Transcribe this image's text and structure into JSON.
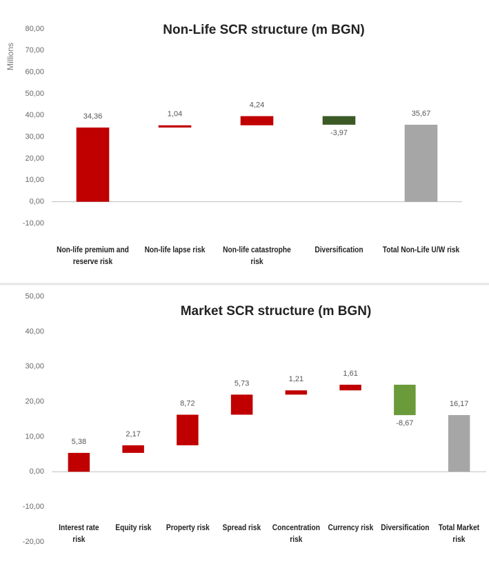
{
  "chart_data": [
    {
      "type": "waterfall",
      "title": "Non-Life SCR structure (m BGN)",
      "y_label": "Millions",
      "categories": [
        "Non-life premium and reserve risk",
        "Non-life lapse risk",
        "Non-life catastrophe risk",
        "Diversification",
        "Total Non-Life U/W risk"
      ],
      "values": [
        34.36,
        1.04,
        4.24,
        -3.97,
        35.67
      ],
      "value_labels": [
        "34,36",
        "1,04",
        "4,24",
        "-3,97",
        "35,67"
      ],
      "increase_color": "#c00000",
      "decrease_color": "#3b5a26",
      "total_color": "#a6a6a6",
      "ylim": [
        -10,
        80
      ],
      "yticks": [
        {
          "value": -10,
          "label": "-10,00"
        },
        {
          "value": 0,
          "label": "0,00"
        },
        {
          "value": 10,
          "label": "10,00"
        },
        {
          "value": 20,
          "label": "20,00"
        },
        {
          "value": 30,
          "label": "30,00"
        },
        {
          "value": 40,
          "label": "40,00"
        },
        {
          "value": 50,
          "label": "50,00"
        },
        {
          "value": 60,
          "label": "60,00"
        },
        {
          "value": 70,
          "label": "70,00"
        },
        {
          "value": 80,
          "label": "80,00"
        }
      ]
    },
    {
      "type": "waterfall",
      "title": "Market SCR structure (m BGN)",
      "categories": [
        "Interest rate risk",
        "Equity risk",
        "Property risk",
        "Spread risk",
        "Concentration risk",
        "Currency risk",
        "Diversification",
        "Total Market risk"
      ],
      "values": [
        5.38,
        2.17,
        8.72,
        5.73,
        1.21,
        1.61,
        -8.67,
        16.17
      ],
      "value_labels": [
        "5,38",
        "2,17",
        "8,72",
        "5,73",
        "1,21",
        "1,61",
        "-8,67",
        "16,17"
      ],
      "increase_color": "#c00000",
      "decrease_color": "#6a9a3a",
      "total_color": "#a6a6a6",
      "ylim": [
        -20,
        50
      ],
      "yticks": [
        {
          "value": -20,
          "label": "-20,00"
        },
        {
          "value": -10,
          "label": "-10,00"
        },
        {
          "value": 0,
          "label": "0,00"
        },
        {
          "value": 10,
          "label": "10,00"
        },
        {
          "value": 20,
          "label": "20,00"
        },
        {
          "value": 30,
          "label": "30,00"
        },
        {
          "value": 40,
          "label": "40,00"
        },
        {
          "value": 50,
          "label": "50,00"
        }
      ]
    }
  ]
}
